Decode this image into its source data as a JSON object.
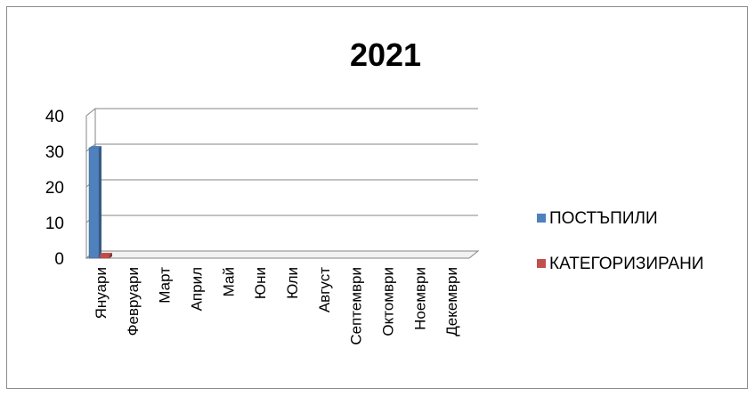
{
  "chart_data": {
    "type": "bar",
    "title": "2021",
    "xlabel": "",
    "ylabel": "",
    "categories": [
      "Януари",
      "Февруари",
      "Март",
      "Април",
      "Май",
      "Юни",
      "Юли",
      "Август",
      "Септември",
      "Октомври",
      "Ноември",
      "Декември"
    ],
    "series": [
      {
        "name": "ПОСТЪПИЛИ",
        "color": "#4f81bd",
        "values": [
          31,
          0,
          0,
          0,
          0,
          0,
          0,
          0,
          0,
          0,
          0,
          0
        ]
      },
      {
        "name": "КАТЕГОРИЗИРАНИ",
        "color": "#c0504d",
        "values": [
          1,
          0,
          0,
          0,
          0,
          0,
          0,
          0,
          0,
          0,
          0,
          0
        ]
      }
    ],
    "ylim": [
      0,
      40
    ],
    "yticks": [
      0,
      10,
      20,
      30,
      40
    ],
    "grid": true,
    "legend_position": "right",
    "style": "3d-column"
  }
}
